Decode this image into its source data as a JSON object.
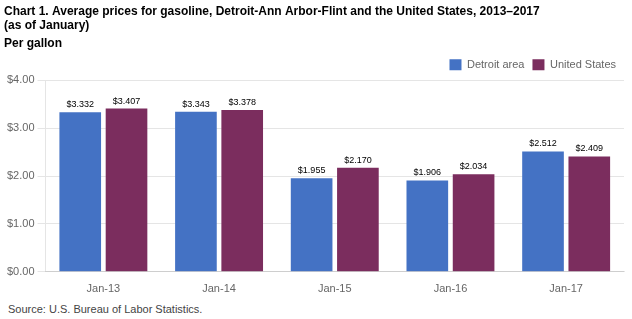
{
  "chart_data": {
    "type": "bar",
    "title": "Chart 1. Average prices for gasoline, Detroit-Ann Arbor-Flint and the United States, 2013–2017\n(as of January)",
    "ylabel": "Per gallon",
    "source": "Source: U.S. Bureau of Labor Statistics.",
    "categories": [
      "Jan-13",
      "Jan-14",
      "Jan-15",
      "Jan-16",
      "Jan-17"
    ],
    "series": [
      {
        "name": "Detroit area",
        "color": "#4472C4",
        "values": [
          3.332,
          3.343,
          1.955,
          1.906,
          2.512
        ],
        "value_labels": [
          "$3.332",
          "$3.343",
          "$1.955",
          "$1.906",
          "$2.512"
        ]
      },
      {
        "name": "United States",
        "color": "#7B2D5E",
        "values": [
          3.407,
          3.378,
          2.17,
          2.034,
          2.409
        ],
        "value_labels": [
          "$3.407",
          "$3.378",
          "$2.170",
          "$2.034",
          "$2.409"
        ]
      }
    ],
    "ylim": [
      0,
      4.0
    ],
    "yticks": [
      {
        "value": 0.0,
        "label": "$0.00"
      },
      {
        "value": 1.0,
        "label": "$1.00"
      },
      {
        "value": 2.0,
        "label": "$2.00"
      },
      {
        "value": 3.0,
        "label": "$3.00"
      },
      {
        "value": 4.0,
        "label": "$4.00"
      }
    ],
    "grid": true,
    "legend": "upper right",
    "data_labels": true
  }
}
